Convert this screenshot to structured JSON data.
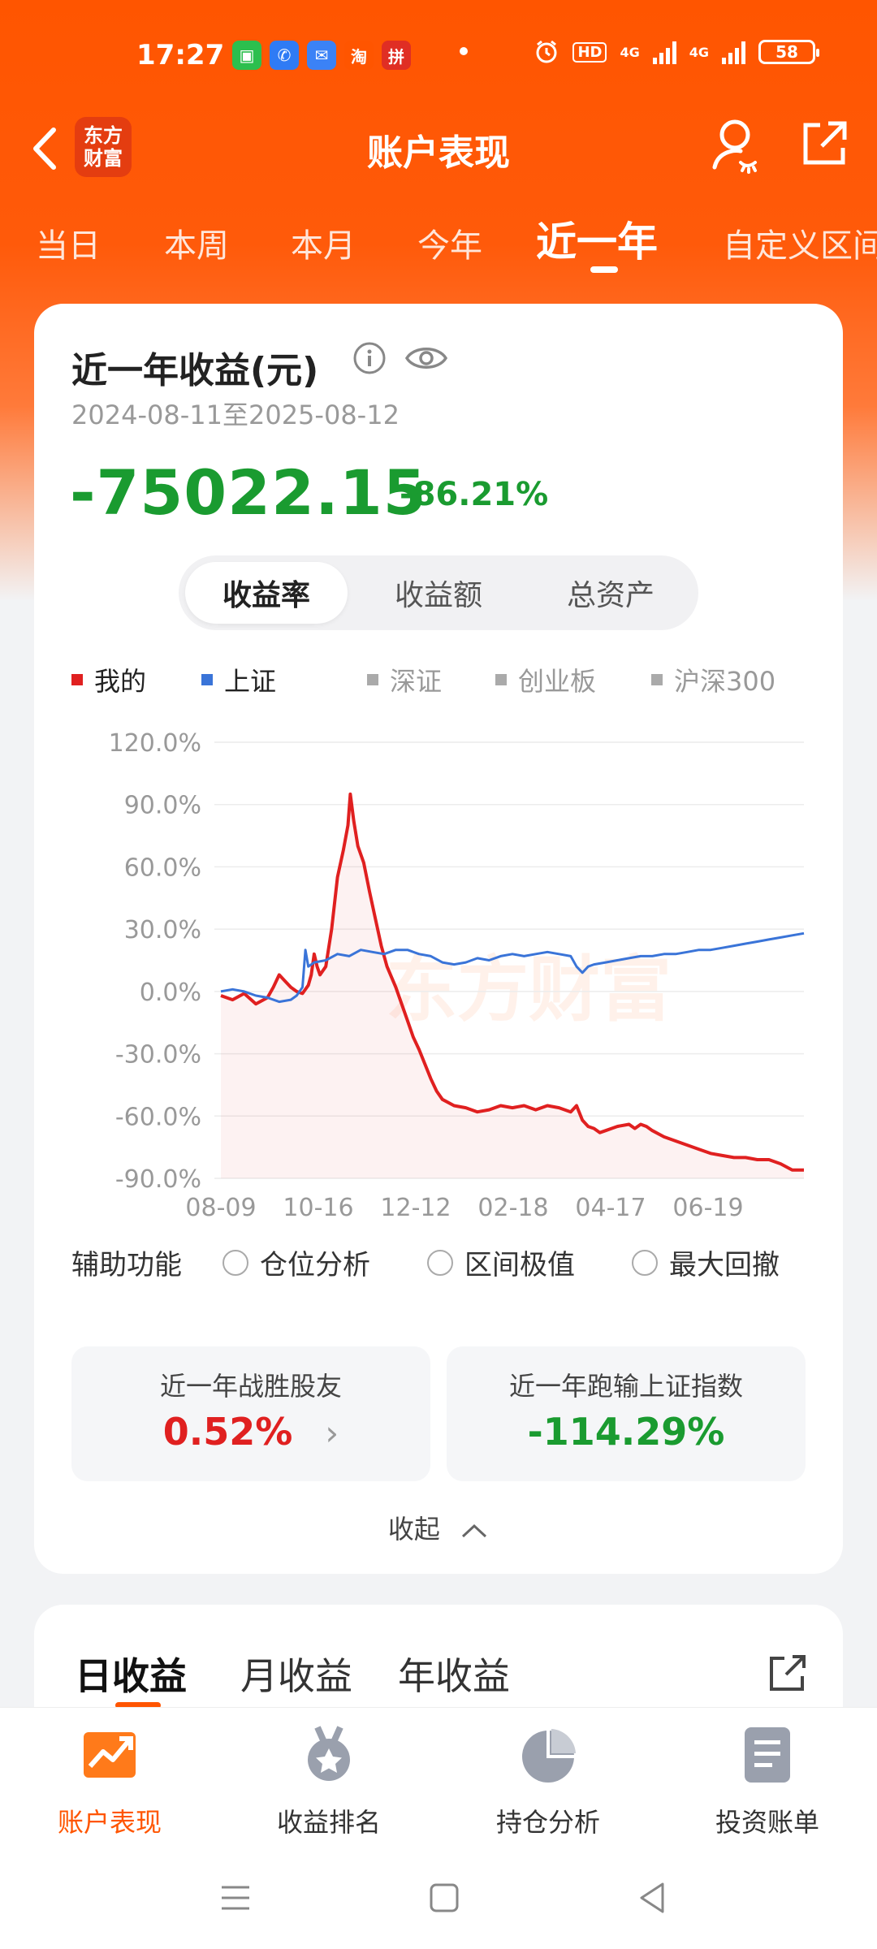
{
  "status_bar": {
    "time": "17:27",
    "apps": [
      {
        "name": "wechat-icon",
        "color": "#2cbf4e",
        "glyph": "▣"
      },
      {
        "name": "phone-icon",
        "color": "#2f7bf5",
        "glyph": "✆"
      },
      {
        "name": "mail-icon",
        "color": "#3b82f6",
        "glyph": "✉"
      },
      {
        "name": "taobao-icon",
        "color": "#ff5500",
        "glyph": "淘"
      },
      {
        "name": "pinduoduo-icon",
        "color": "#e02e24",
        "glyph": "拼"
      }
    ],
    "hd_badge": "HD",
    "net1": "4G",
    "net2": "4G",
    "battery": "58"
  },
  "header": {
    "logo_line1": "东方",
    "logo_line2": "财富",
    "title": "账户表现"
  },
  "period_tabs": [
    {
      "label": "当日",
      "active": false
    },
    {
      "label": "本周",
      "active": false
    },
    {
      "label": "本月",
      "active": false
    },
    {
      "label": "今年",
      "active": false
    },
    {
      "label": "近一年",
      "active": true
    },
    {
      "label": "自定义区间",
      "active": false
    }
  ],
  "summary": {
    "title": "近一年收益(元)",
    "date_range": "2024-08-11至2025-08-12",
    "value": "-75022.15",
    "percent": "-86.21%"
  },
  "segment": [
    {
      "label": "收益率",
      "active": true
    },
    {
      "label": "收益额",
      "active": false
    },
    {
      "label": "总资产",
      "active": false
    }
  ],
  "legend": [
    {
      "label": "我的",
      "color": "#e02020",
      "muted": false
    },
    {
      "label": "上证",
      "color": "#3a74d8",
      "muted": false
    },
    {
      "label": "深证",
      "color": "#aaaaaa",
      "muted": true
    },
    {
      "label": "创业板",
      "color": "#aaaaaa",
      "muted": true
    },
    {
      "label": "沪深300",
      "color": "#aaaaaa",
      "muted": true
    }
  ],
  "chart_data": {
    "type": "line",
    "watermark": "东方财富",
    "x_ticks": [
      "08-09",
      "10-16",
      "12-12",
      "02-18",
      "04-17",
      "06-19"
    ],
    "y_ticks": [
      "120.0%",
      "90.0%",
      "60.0%",
      "30.0%",
      "0.0%",
      "-30.0%",
      "-60.0%",
      "-90.0%"
    ],
    "ylim": [
      -90,
      120
    ],
    "x_range": [
      0,
      100
    ],
    "grid": true,
    "series": [
      {
        "name": "我的",
        "color": "#e02020",
        "points": [
          [
            0,
            -2
          ],
          [
            2,
            -4
          ],
          [
            4,
            -1
          ],
          [
            6,
            -6
          ],
          [
            8,
            -3
          ],
          [
            9,
            2
          ],
          [
            10,
            8
          ],
          [
            11,
            5
          ],
          [
            12,
            2
          ],
          [
            13,
            0
          ],
          [
            14,
            -1
          ],
          [
            15,
            3
          ],
          [
            15.5,
            8
          ],
          [
            16,
            18
          ],
          [
            16.5,
            12
          ],
          [
            17,
            8
          ],
          [
            18,
            12
          ],
          [
            19,
            30
          ],
          [
            20,
            55
          ],
          [
            21,
            68
          ],
          [
            21.8,
            80
          ],
          [
            22.2,
            95
          ],
          [
            22.8,
            82
          ],
          [
            23.5,
            70
          ],
          [
            24.5,
            62
          ],
          [
            25.5,
            48
          ],
          [
            26.5,
            35
          ],
          [
            27.5,
            22
          ],
          [
            28.5,
            12
          ],
          [
            30,
            2
          ],
          [
            31,
            -6
          ],
          [
            32,
            -14
          ],
          [
            33,
            -22
          ],
          [
            34,
            -28
          ],
          [
            35,
            -35
          ],
          [
            36,
            -42
          ],
          [
            37,
            -48
          ],
          [
            38,
            -52
          ],
          [
            40,
            -55
          ],
          [
            42,
            -56
          ],
          [
            44,
            -58
          ],
          [
            46,
            -57
          ],
          [
            48,
            -55
          ],
          [
            50,
            -56
          ],
          [
            52,
            -55
          ],
          [
            54,
            -57
          ],
          [
            56,
            -55
          ],
          [
            58,
            -56
          ],
          [
            60,
            -58
          ],
          [
            61,
            -55
          ],
          [
            62,
            -62
          ],
          [
            63,
            -65
          ],
          [
            64,
            -66
          ],
          [
            65,
            -68
          ],
          [
            66,
            -67
          ],
          [
            67,
            -66
          ],
          [
            68,
            -65
          ],
          [
            70,
            -64
          ],
          [
            71,
            -66
          ],
          [
            72,
            -64
          ],
          [
            73,
            -65
          ],
          [
            74,
            -67
          ],
          [
            76,
            -70
          ],
          [
            78,
            -72
          ],
          [
            80,
            -74
          ],
          [
            82,
            -76
          ],
          [
            84,
            -78
          ],
          [
            86,
            -79
          ],
          [
            88,
            -80
          ],
          [
            90,
            -80
          ],
          [
            92,
            -81
          ],
          [
            94,
            -81
          ],
          [
            96,
            -83
          ],
          [
            98,
            -86
          ],
          [
            100,
            -86
          ]
        ]
      },
      {
        "name": "上证",
        "color": "#3a74d8",
        "points": [
          [
            0,
            0
          ],
          [
            2,
            1
          ],
          [
            4,
            0
          ],
          [
            6,
            -2
          ],
          [
            8,
            -3
          ],
          [
            10,
            -5
          ],
          [
            12,
            -4
          ],
          [
            13,
            -2
          ],
          [
            14,
            2
          ],
          [
            14.5,
            20
          ],
          [
            15,
            12
          ],
          [
            16,
            14
          ],
          [
            18,
            15
          ],
          [
            20,
            18
          ],
          [
            22,
            17
          ],
          [
            24,
            20
          ],
          [
            26,
            19
          ],
          [
            28,
            18
          ],
          [
            30,
            20
          ],
          [
            32,
            20
          ],
          [
            34,
            18
          ],
          [
            36,
            17
          ],
          [
            38,
            14
          ],
          [
            40,
            13
          ],
          [
            42,
            14
          ],
          [
            44,
            16
          ],
          [
            46,
            15
          ],
          [
            48,
            17
          ],
          [
            50,
            18
          ],
          [
            52,
            17
          ],
          [
            54,
            18
          ],
          [
            56,
            19
          ],
          [
            58,
            18
          ],
          [
            60,
            17
          ],
          [
            61,
            12
          ],
          [
            62,
            9
          ],
          [
            63,
            12
          ],
          [
            64,
            13
          ],
          [
            66,
            14
          ],
          [
            68,
            15
          ],
          [
            70,
            16
          ],
          [
            72,
            17
          ],
          [
            74,
            17
          ],
          [
            76,
            18
          ],
          [
            78,
            18
          ],
          [
            80,
            19
          ],
          [
            82,
            20
          ],
          [
            84,
            20
          ],
          [
            86,
            21
          ],
          [
            88,
            22
          ],
          [
            90,
            23
          ],
          [
            92,
            24
          ],
          [
            94,
            25
          ],
          [
            96,
            26
          ],
          [
            98,
            27
          ],
          [
            100,
            28
          ]
        ]
      }
    ]
  },
  "aux": {
    "label": "辅助功能",
    "options": [
      "仓位分析",
      "区间极值",
      "最大回撤"
    ]
  },
  "stats": [
    {
      "label": "近一年战胜股友",
      "value": "0.52%",
      "color": "#e02020",
      "arrow": "›"
    },
    {
      "label": "近一年跑输上证指数",
      "value": "-114.29%",
      "color": "#1a9b30"
    }
  ],
  "collapse_label": "收起",
  "returns_tabs": [
    {
      "label": "日收益",
      "active": true
    },
    {
      "label": "月收益",
      "active": false
    },
    {
      "label": "年收益",
      "active": false
    }
  ],
  "bottom_nav": [
    {
      "label": "账户表现",
      "icon": "account-performance-icon",
      "active": true
    },
    {
      "label": "收益排名",
      "icon": "medal-icon",
      "active": false
    },
    {
      "label": "持仓分析",
      "icon": "pie-chart-icon",
      "active": false
    },
    {
      "label": "投资账单",
      "icon": "bill-icon",
      "active": false
    }
  ]
}
